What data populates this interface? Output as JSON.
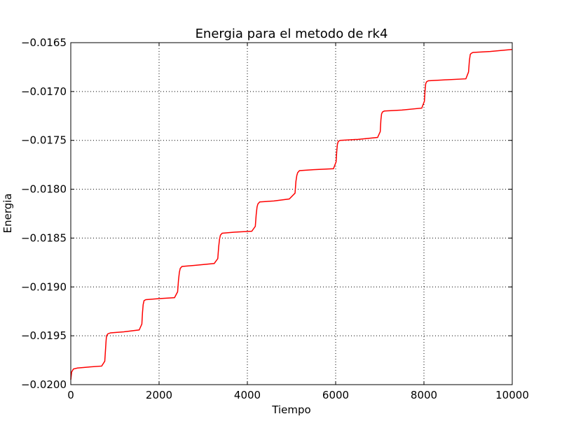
{
  "chart_data": {
    "type": "line",
    "title": "Energia para el metodo de rk4",
    "xlabel": "Tiempo",
    "ylabel": "Energia",
    "xlim": [
      0,
      10000
    ],
    "ylim": [
      -0.02,
      -0.0165
    ],
    "x_ticks": [
      0,
      2000,
      4000,
      6000,
      8000,
      10000
    ],
    "x_tick_labels": [
      "0",
      "2000",
      "4000",
      "6000",
      "8000",
      "10000"
    ],
    "y_ticks": [
      -0.02,
      -0.0195,
      -0.019,
      -0.0185,
      -0.018,
      -0.0175,
      -0.017,
      -0.0165
    ],
    "y_tick_labels": [
      "−0.0200",
      "−0.0195",
      "−0.0190",
      "−0.0185",
      "−0.0180",
      "−0.0175",
      "−0.0170",
      "−0.0165"
    ],
    "grid": true,
    "series": [
      {
        "color": "#ff0000",
        "x": [
          0,
          20,
          60,
          150,
          400,
          700,
          770,
          790,
          800,
          810,
          840,
          900,
          1200,
          1550,
          1610,
          1625,
          1640,
          1660,
          1700,
          2000,
          2350,
          2420,
          2440,
          2460,
          2480,
          2520,
          2800,
          3250,
          3330,
          3350,
          3370,
          3390,
          3430,
          3700,
          4100,
          4180,
          4200,
          4220,
          4240,
          4280,
          4600,
          4950,
          5080,
          5100,
          5120,
          5140,
          5180,
          5500,
          5950,
          6010,
          6025,
          6040,
          6060,
          6100,
          6500,
          6950,
          7010,
          7025,
          7040,
          7060,
          7100,
          7500,
          7950,
          8010,
          8025,
          8040,
          8060,
          8100,
          8500,
          8950,
          9010,
          9030,
          9050,
          9070,
          9110,
          9500,
          9990
        ],
        "y": [
          -0.01995,
          -0.01987,
          -0.01984,
          -0.01983,
          -0.01982,
          -0.01981,
          -0.01976,
          -0.01962,
          -0.01955,
          -0.0195,
          -0.01948,
          -0.01947,
          -0.01946,
          -0.01944,
          -0.01938,
          -0.01926,
          -0.01918,
          -0.01914,
          -0.01913,
          -0.01912,
          -0.01911,
          -0.01905,
          -0.01893,
          -0.01885,
          -0.01881,
          -0.01879,
          -0.01878,
          -0.01876,
          -0.01871,
          -0.01859,
          -0.01851,
          -0.01847,
          -0.01845,
          -0.01844,
          -0.01843,
          -0.01838,
          -0.01826,
          -0.01818,
          -0.01815,
          -0.01813,
          -0.01812,
          -0.0181,
          -0.01804,
          -0.01792,
          -0.01786,
          -0.01783,
          -0.01781,
          -0.0178,
          -0.01779,
          -0.01772,
          -0.01761,
          -0.01754,
          -0.01751,
          -0.0175,
          -0.01749,
          -0.01747,
          -0.01741,
          -0.01729,
          -0.01723,
          -0.01721,
          -0.0172,
          -0.01719,
          -0.01717,
          -0.0171,
          -0.01699,
          -0.01692,
          -0.0169,
          -0.01689,
          -0.01688,
          -0.01687,
          -0.0168,
          -0.01668,
          -0.01662,
          -0.01661,
          -0.0166,
          -0.01659,
          -0.01657
        ]
      }
    ]
  }
}
